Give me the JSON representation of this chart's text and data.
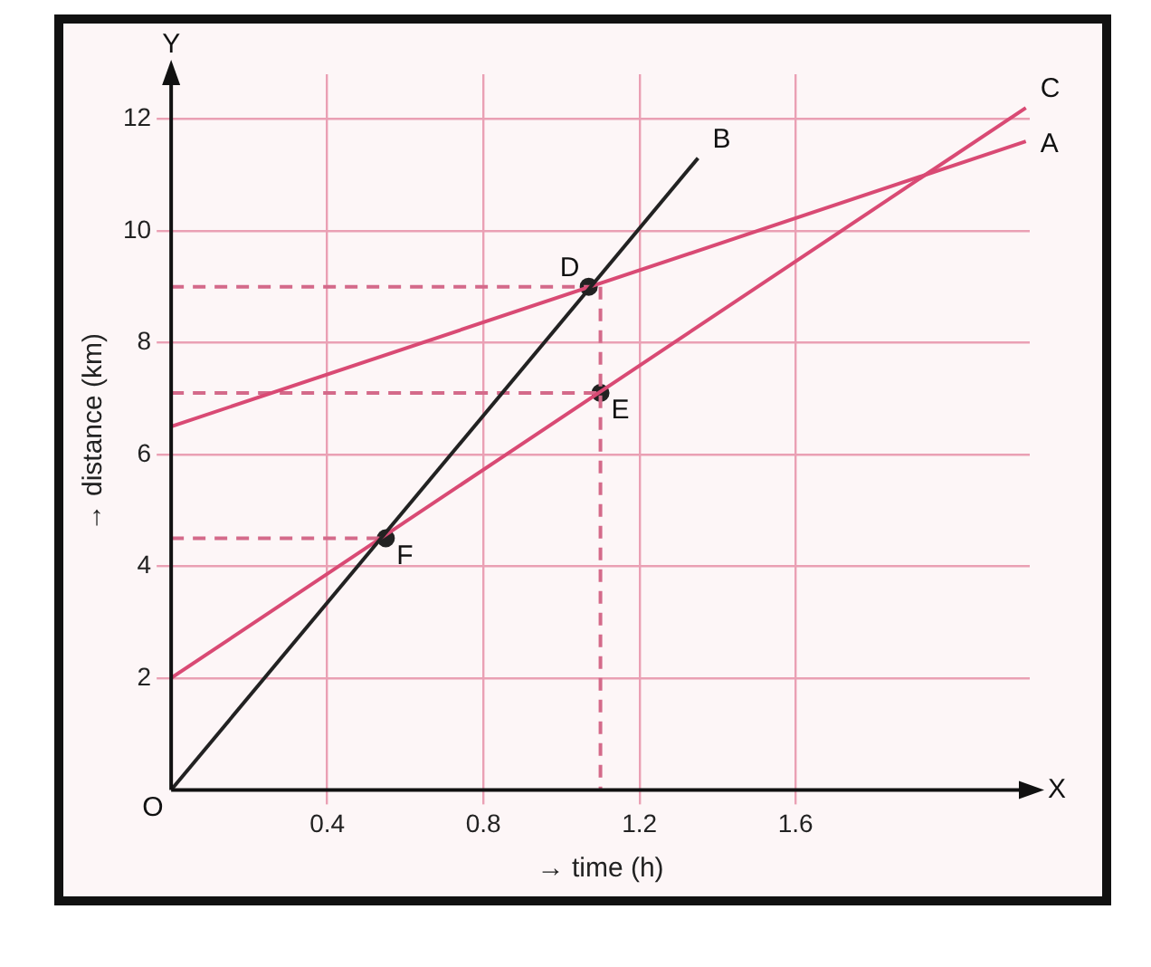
{
  "chart_data": {
    "type": "line",
    "xlabel": "→ time (h)",
    "ylabel": "→ distance (km)",
    "xlim": [
      0,
      2.2
    ],
    "ylim": [
      0,
      12.8
    ],
    "xticks": [
      0.4,
      0.8,
      1.2,
      1.6
    ],
    "yticks": [
      2,
      4,
      6,
      8,
      10,
      12
    ],
    "grid": true,
    "legend": false,
    "marker": "none",
    "line_style": "solid",
    "series": [
      {
        "color": "#222222",
        "x": [
          0,
          1.35
        ],
        "values": [
          0,
          11.3
        ]
      },
      {
        "color": "#d94a74",
        "x": [
          0,
          2.19
        ],
        "values": [
          6.5,
          11.6
        ]
      },
      {
        "color": "#d94a74",
        "x": [
          0,
          2.19
        ],
        "values": [
          2,
          12.2
        ]
      },
      {
        "color": "#d46a8a",
        "line_style": "dashed",
        "x": [
          0,
          1.07
        ],
        "values": [
          9,
          9
        ]
      },
      {
        "color": "#d46a8a",
        "line_style": "dashed",
        "x": [
          0,
          1.1
        ],
        "values": [
          7.1,
          7.1
        ]
      },
      {
        "color": "#d46a8a",
        "line_style": "dashed",
        "x": [
          0,
          0.55
        ],
        "values": [
          4.5,
          4.5
        ]
      },
      {
        "color": "#d46a8a",
        "line_style": "dashed",
        "x": [
          1.1,
          1.1
        ],
        "values": [
          9,
          0
        ]
      },
      {
        "type": "scatter",
        "marker": "circle",
        "color": "#222222",
        "x": [
          1.07,
          1.1,
          0.55
        ],
        "values": [
          9,
          7.1,
          4.5
        ]
      }
    ],
    "annotations": [
      {
        "text": "A",
        "x": 2.19,
        "y": 11.6
      },
      {
        "text": "B",
        "x": 1.35,
        "y": 11.3
      },
      {
        "text": "C",
        "x": 2.19,
        "y": 12.2
      },
      {
        "text": "D",
        "x": 1.07,
        "y": 9
      },
      {
        "text": "E",
        "x": 1.1,
        "y": 7.1
      },
      {
        "text": "F",
        "x": 0.55,
        "y": 4.5
      },
      {
        "text": "O",
        "x": 0,
        "y": 0
      },
      {
        "text": "X",
        "x": 2.2,
        "y": 0
      },
      {
        "text": "Y",
        "x": 0,
        "y": 12.8
      }
    ]
  }
}
